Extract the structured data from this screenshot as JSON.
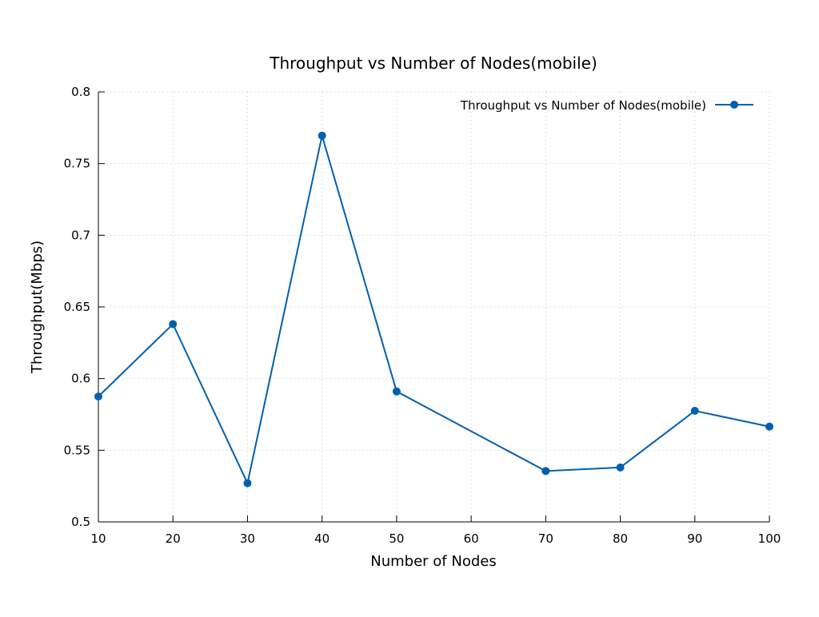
{
  "chart_data": {
    "type": "line",
    "title": "Throughput vs Number of Nodes(mobile)",
    "xlabel": "Number of Nodes",
    "ylabel": "Throughput(Mbps)",
    "xlim": [
      10,
      100
    ],
    "ylim": [
      0.5,
      0.8
    ],
    "x_ticks": [
      10,
      20,
      30,
      40,
      50,
      60,
      70,
      80,
      90,
      100
    ],
    "y_ticks": [
      0.5,
      0.55,
      0.6,
      0.65,
      0.7,
      0.75,
      0.8
    ],
    "x_tick_labels": [
      "10",
      "20",
      "30",
      "40",
      "50",
      "60",
      "70",
      "80",
      "90",
      "100"
    ],
    "y_tick_labels": [
      "0.5",
      "0.55",
      "0.6",
      "0.65",
      "0.7",
      "0.75",
      "0.8"
    ],
    "grid": true,
    "legend_position": "top-right",
    "series": [
      {
        "name": "Throughput vs Number of Nodes(mobile)",
        "color": "#0060ad",
        "marker": "circle",
        "x": [
          10,
          20,
          30,
          40,
          50,
          70,
          80,
          90,
          100
        ],
        "y": [
          0.5875,
          0.638,
          0.527,
          0.7695,
          0.591,
          0.5355,
          0.538,
          0.5775,
          0.5665
        ]
      }
    ]
  }
}
